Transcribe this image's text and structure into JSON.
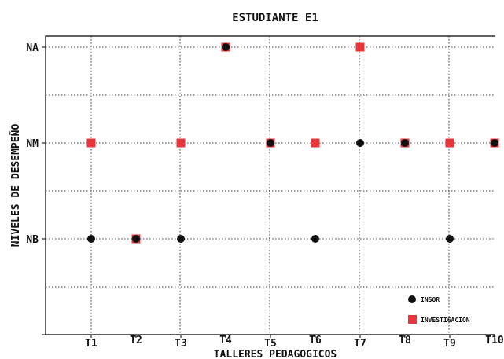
{
  "chart_data": {
    "type": "scatter",
    "title": "ESTUDIANTE E1",
    "xlabel": "TALLERES PEDAGOGICOS",
    "ylabel": "NIVELES DE DESEMPEÑO",
    "categories": [
      "T1",
      "T2",
      "T3",
      "T4",
      "T5",
      "T6",
      "T7",
      "T8",
      "T9",
      "T10"
    ],
    "y_levels": [
      "NB",
      "NM",
      "NA"
    ],
    "y_level_values": [
      1,
      2,
      3
    ],
    "ylim": [
      0,
      3
    ],
    "grid": true,
    "legend_position": "bottom-right",
    "series": [
      {
        "name": "INSOR",
        "marker": "circle",
        "color": "#111111",
        "values": [
          1,
          1,
          1,
          3,
          2,
          1,
          2,
          2,
          1,
          2
        ]
      },
      {
        "name": "INVESTIGACION",
        "marker": "square",
        "color": "#e8363b",
        "values": [
          2,
          1,
          2,
          3,
          2,
          2,
          3,
          2,
          2,
          2
        ]
      }
    ]
  }
}
